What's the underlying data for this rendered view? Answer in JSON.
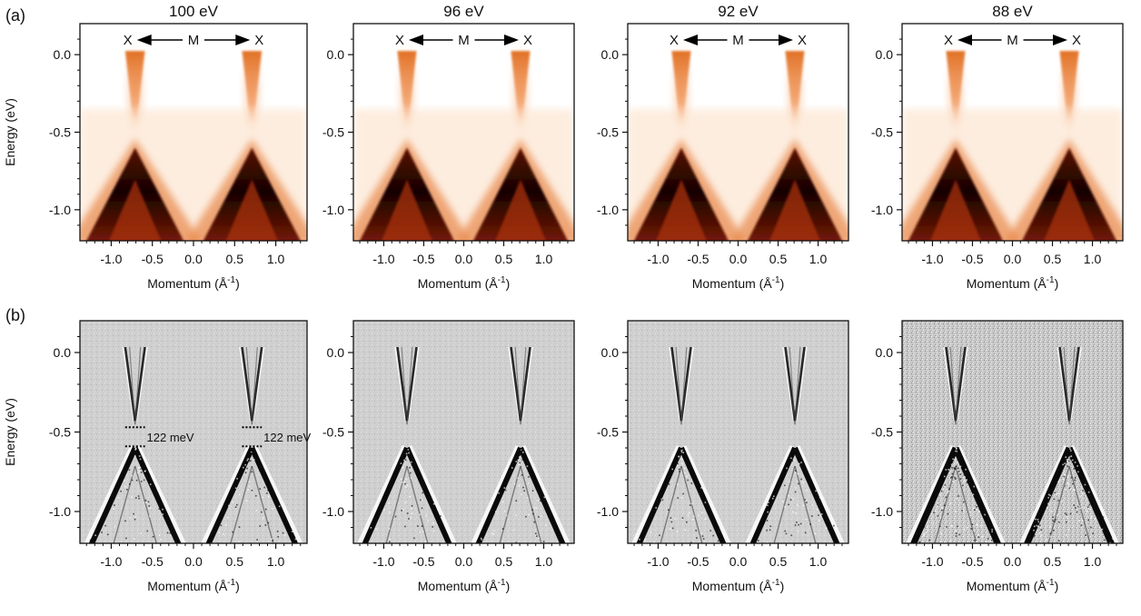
{
  "figure": {
    "row_labels": [
      "(a)",
      "(b)"
    ],
    "colors": {
      "arpes_low": "#fff6ee",
      "arpes_mid": "#e06a1a",
      "arpes_high": "#5a1206",
      "arpes_peak": "#160201",
      "second_derivative_background": "#cfcfcf",
      "second_derivative_band": "#0a0a0a",
      "axis": "#111111"
    }
  },
  "chart_data": [
    {
      "type": "heatmap",
      "row": "a",
      "title": "100 eV",
      "xlabel_main": "Momentum (Å",
      "xlabel_sup": "-1",
      "xlabel_close": ")",
      "ylabel": "Energy (eV)",
      "show_ylabel": true,
      "xlim": [
        -1.38,
        1.38
      ],
      "ylim": [
        -1.2,
        0.2
      ],
      "xticks": [
        -1.0,
        -0.5,
        0.0,
        0.5,
        1.0
      ],
      "xtick_labels": [
        "-1.0",
        "-0.5",
        "0.0",
        "0.5",
        "1.0"
      ],
      "yticks": [
        0.0,
        -0.5,
        -1.0
      ],
      "ytick_labels": [
        "0.0",
        "-0.5",
        "-1.0"
      ],
      "path_label": {
        "left": "X",
        "center": "M",
        "right": "X"
      },
      "gamma_points_k": [
        -0.71,
        0.71
      ],
      "dirac_point_energy": -0.43,
      "valence_band_top_energy": -0.6,
      "style": "intensity",
      "annotations": []
    },
    {
      "type": "heatmap",
      "row": "a",
      "title": "96 eV",
      "xlabel_main": "Momentum (Å",
      "xlabel_sup": "-1",
      "xlabel_close": ")",
      "ylabel": "",
      "show_ylabel": false,
      "xlim": [
        -1.38,
        1.38
      ],
      "ylim": [
        -1.2,
        0.2
      ],
      "xticks": [
        -1.0,
        -0.5,
        0.0,
        0.5,
        1.0
      ],
      "xtick_labels": [
        "-1.0",
        "-0.5",
        "0.0",
        "0.5",
        "1.0"
      ],
      "yticks": [
        0.0,
        -0.5,
        -1.0
      ],
      "ytick_labels": [
        "0.0",
        "-0.5",
        "-1.0"
      ],
      "path_label": {
        "left": "X",
        "center": "M",
        "right": "X"
      },
      "gamma_points_k": [
        -0.71,
        0.71
      ],
      "dirac_point_energy": -0.43,
      "valence_band_top_energy": -0.6,
      "style": "intensity",
      "annotations": []
    },
    {
      "type": "heatmap",
      "row": "a",
      "title": "92 eV",
      "xlabel_main": "Momentum (Å",
      "xlabel_sup": "-1",
      "xlabel_close": ")",
      "ylabel": "",
      "show_ylabel": false,
      "xlim": [
        -1.38,
        1.38
      ],
      "ylim": [
        -1.2,
        0.2
      ],
      "xticks": [
        -1.0,
        -0.5,
        0.0,
        0.5,
        1.0
      ],
      "xtick_labels": [
        "-1.0",
        "-0.5",
        "0.0",
        "0.5",
        "1.0"
      ],
      "yticks": [
        0.0,
        -0.5,
        -1.0
      ],
      "ytick_labels": [
        "0.0",
        "-0.5",
        "-1.0"
      ],
      "path_label": {
        "left": "X",
        "center": "M",
        "right": "X"
      },
      "gamma_points_k": [
        -0.71,
        0.71
      ],
      "dirac_point_energy": -0.43,
      "valence_band_top_energy": -0.6,
      "style": "intensity",
      "annotations": []
    },
    {
      "type": "heatmap",
      "row": "a",
      "title": "88 eV",
      "xlabel_main": "Momentum (Å",
      "xlabel_sup": "-1",
      "xlabel_close": ")",
      "ylabel": "",
      "show_ylabel": false,
      "xlim": [
        -1.38,
        1.38
      ],
      "ylim": [
        -1.2,
        0.2
      ],
      "xticks": [
        -1.0,
        -0.5,
        0.0,
        0.5,
        1.0
      ],
      "xtick_labels": [
        "-1.0",
        "-0.5",
        "0.0",
        "0.5",
        "1.0"
      ],
      "yticks": [
        0.0,
        -0.5,
        -1.0
      ],
      "ytick_labels": [
        "0.0",
        "-0.5",
        "-1.0"
      ],
      "path_label": {
        "left": "X",
        "center": "M",
        "right": "X"
      },
      "gamma_points_k": [
        -0.71,
        0.71
      ],
      "dirac_point_energy": -0.43,
      "valence_band_top_energy": -0.6,
      "style": "intensity",
      "annotations": []
    },
    {
      "type": "heatmap",
      "row": "b",
      "title": "",
      "xlabel_main": "Momentum (Å",
      "xlabel_sup": "-1",
      "xlabel_close": ")",
      "ylabel": "Energy (eV)",
      "show_ylabel": true,
      "xlim": [
        -1.38,
        1.38
      ],
      "ylim": [
        -1.2,
        0.2
      ],
      "xticks": [
        -1.0,
        -0.5,
        0.0,
        0.5,
        1.0
      ],
      "xtick_labels": [
        "-1.0",
        "-0.5",
        "0.0",
        "0.5",
        "1.0"
      ],
      "yticks": [
        0.0,
        -0.5,
        -1.0
      ],
      "ytick_labels": [
        "0.0",
        "-0.5",
        "-1.0"
      ],
      "path_label": null,
      "gamma_points_k": [
        -0.71,
        0.71
      ],
      "dirac_point_energy": -0.43,
      "valence_band_top_energy": -0.6,
      "style": "second-derivative",
      "annotations": [
        {
          "text": "122 meV",
          "k_center": -0.71,
          "upper_energy": -0.47,
          "lower_energy": -0.59
        },
        {
          "text": "122 meV",
          "k_center": 0.71,
          "upper_energy": -0.47,
          "lower_energy": -0.59
        }
      ]
    },
    {
      "type": "heatmap",
      "row": "b",
      "title": "",
      "xlabel_main": "Momentum (Å",
      "xlabel_sup": "-1",
      "xlabel_close": ")",
      "ylabel": "",
      "show_ylabel": false,
      "xlim": [
        -1.38,
        1.38
      ],
      "ylim": [
        -1.2,
        0.2
      ],
      "xticks": [
        -1.0,
        -0.5,
        0.0,
        0.5,
        1.0
      ],
      "xtick_labels": [
        "-1.0",
        "-0.5",
        "0.0",
        "0.5",
        "1.0"
      ],
      "yticks": [
        0.0,
        -0.5,
        -1.0
      ],
      "ytick_labels": [
        "0.0",
        "-0.5",
        "-1.0"
      ],
      "path_label": null,
      "gamma_points_k": [
        -0.71,
        0.71
      ],
      "dirac_point_energy": -0.43,
      "valence_band_top_energy": -0.6,
      "style": "second-derivative",
      "annotations": []
    },
    {
      "type": "heatmap",
      "row": "b",
      "title": "",
      "xlabel_main": "Momentum (Å",
      "xlabel_sup": "-1",
      "xlabel_close": ")",
      "ylabel": "",
      "show_ylabel": false,
      "xlim": [
        -1.38,
        1.38
      ],
      "ylim": [
        -1.2,
        0.2
      ],
      "xticks": [
        -1.0,
        -0.5,
        0.0,
        0.5,
        1.0
      ],
      "xtick_labels": [
        "-1.0",
        "-0.5",
        "0.0",
        "0.5",
        "1.0"
      ],
      "yticks": [
        0.0,
        -0.5,
        -1.0
      ],
      "ytick_labels": [
        "0.0",
        "-0.5",
        "-1.0"
      ],
      "path_label": null,
      "gamma_points_k": [
        -0.71,
        0.71
      ],
      "dirac_point_energy": -0.43,
      "valence_band_top_energy": -0.6,
      "style": "second-derivative",
      "annotations": []
    },
    {
      "type": "heatmap",
      "row": "b",
      "title": "",
      "xlabel_main": "Momentum (Å",
      "xlabel_sup": "-1",
      "xlabel_close": ")",
      "ylabel": "",
      "show_ylabel": false,
      "xlim": [
        -1.38,
        1.38
      ],
      "ylim": [
        -1.2,
        0.2
      ],
      "xticks": [
        -1.0,
        -0.5,
        0.0,
        0.5,
        1.0
      ],
      "xtick_labels": [
        "-1.0",
        "-0.5",
        "0.0",
        "0.5",
        "1.0"
      ],
      "yticks": [
        0.0,
        -0.5,
        -1.0
      ],
      "ytick_labels": [
        "0.0",
        "-0.5",
        "-1.0"
      ],
      "path_label": null,
      "gamma_points_k": [
        -0.71,
        0.71
      ],
      "dirac_point_energy": -0.43,
      "valence_band_top_energy": -0.6,
      "style": "second-derivative-noisy",
      "annotations": []
    }
  ]
}
